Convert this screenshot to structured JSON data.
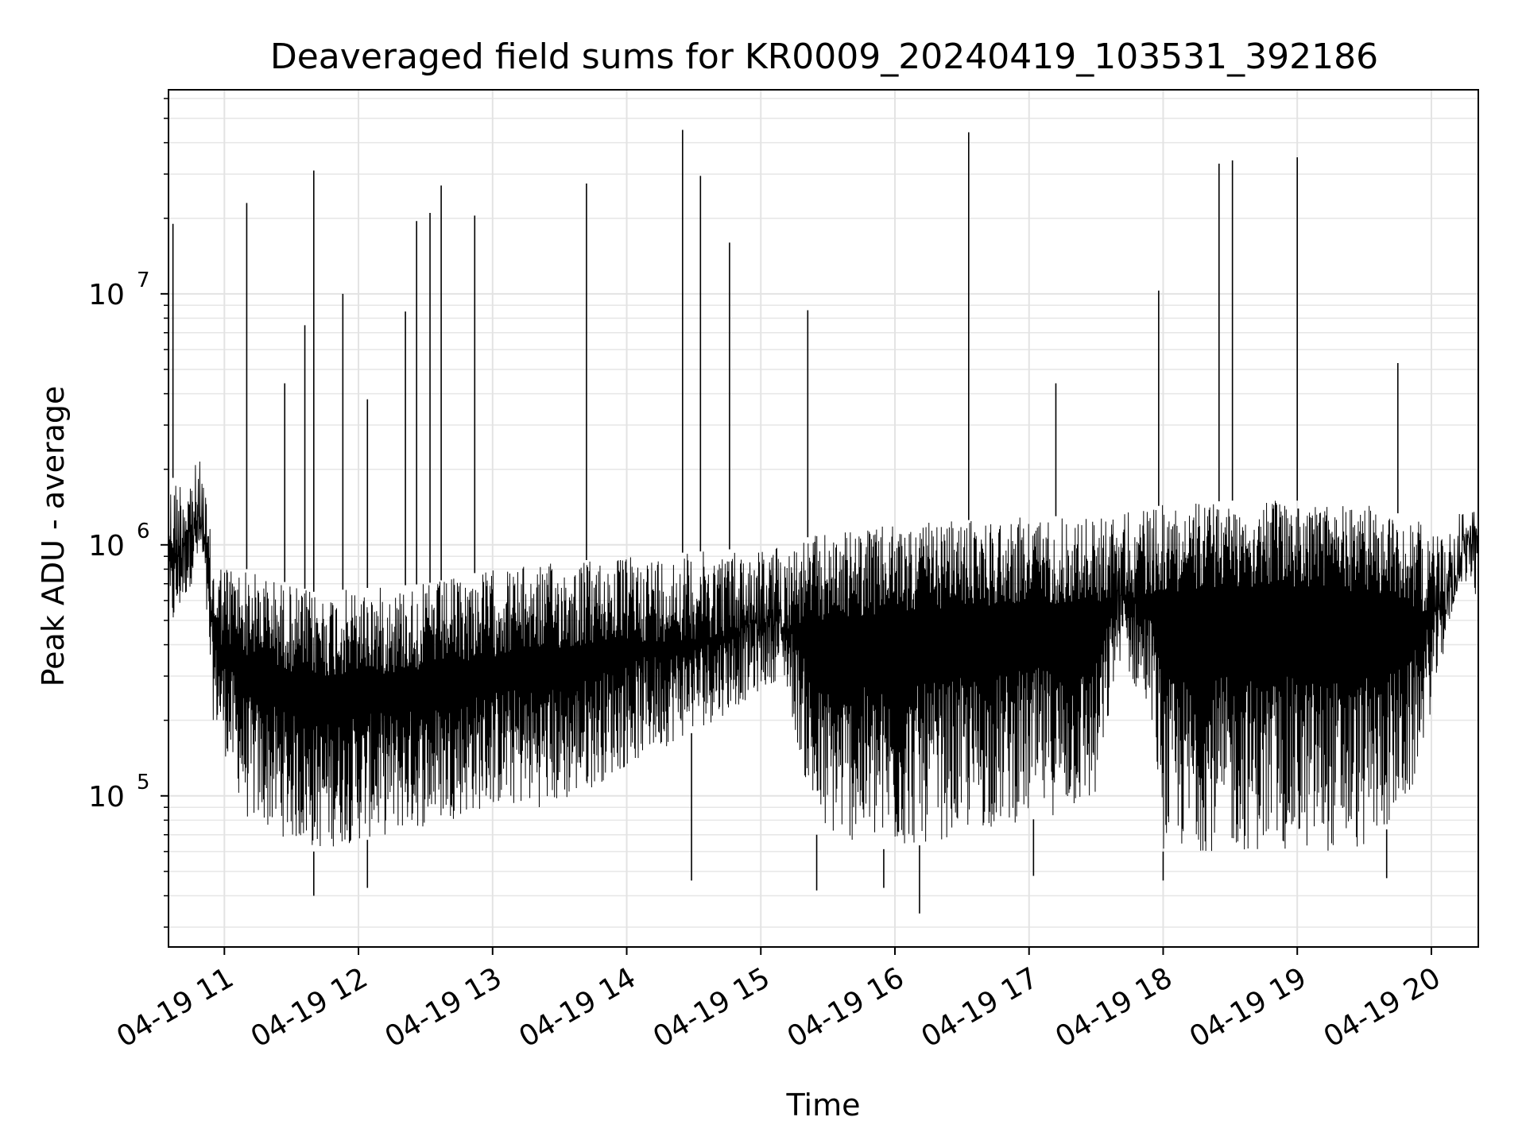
{
  "chart_data": {
    "type": "line",
    "title": "Deaveraged field sums for KR0009_20240419_103531_392186",
    "xlabel": "Time",
    "ylabel": "Peak ADU - average",
    "y_scale": "log",
    "xlim": [
      "04-19 10:35",
      "04-19 20:21"
    ],
    "ylim": [
      25000,
      65000000
    ],
    "x_ticks": [
      "04-19 11",
      "04-19 12",
      "04-19 13",
      "04-19 14",
      "04-19 15",
      "04-19 16",
      "04-19 17",
      "04-19 18",
      "04-19 19",
      "04-19 20"
    ],
    "x_tick_hours": [
      11,
      12,
      13,
      14,
      15,
      16,
      17,
      18,
      19,
      20
    ],
    "y_ticks": [
      100000,
      1000000,
      10000000
    ],
    "y_tick_labels": [
      {
        "base": "10",
        "exp": "5"
      },
      {
        "base": "10",
        "exp": "6"
      },
      {
        "base": "10",
        "exp": "7"
      }
    ],
    "grid": true,
    "line_color": "#000000",
    "baseline_envelope": [
      {
        "time": "04-19 10:35",
        "upper": 1800000,
        "lower": 400000
      },
      {
        "time": "04-19 10:50",
        "upper": 2200000,
        "lower": 900000
      },
      {
        "time": "04-19 10:55",
        "upper": 900000,
        "lower": 200000
      },
      {
        "time": "04-19 11:10",
        "upper": 800000,
        "lower": 80000
      },
      {
        "time": "04-19 11:40",
        "upper": 650000,
        "lower": 60000
      },
      {
        "time": "04-19 12:30",
        "upper": 700000,
        "lower": 75000
      },
      {
        "time": "04-19 13:00",
        "upper": 800000,
        "lower": 90000
      },
      {
        "time": "04-19 13:30",
        "upper": 850000,
        "lower": 90000
      },
      {
        "time": "04-19 14:00",
        "upper": 900000,
        "lower": 130000
      },
      {
        "time": "04-19 14:40",
        "upper": 950000,
        "lower": 200000
      },
      {
        "time": "04-19 15:10",
        "upper": 1000000,
        "lower": 300000
      },
      {
        "time": "04-19 15:25",
        "upper": 1100000,
        "lower": 70000
      },
      {
        "time": "04-19 16:00",
        "upper": 1200000,
        "lower": 60000
      },
      {
        "time": "04-19 16:30",
        "upper": 1250000,
        "lower": 70000
      },
      {
        "time": "04-19 17:00",
        "upper": 1300000,
        "lower": 80000
      },
      {
        "time": "04-19 17:30",
        "upper": 1300000,
        "lower": 90000
      },
      {
        "time": "04-19 17:40",
        "upper": 1350000,
        "lower": 350000
      },
      {
        "time": "04-19 17:55",
        "upper": 1400000,
        "lower": 200000
      },
      {
        "time": "04-19 18:00",
        "upper": 1450000,
        "lower": 60000
      },
      {
        "time": "04-19 18:30",
        "upper": 1500000,
        "lower": 60000
      },
      {
        "time": "04-19 19:00",
        "upper": 1500000,
        "lower": 60000
      },
      {
        "time": "04-19 19:30",
        "upper": 1450000,
        "lower": 60000
      },
      {
        "time": "04-19 19:50",
        "upper": 1300000,
        "lower": 90000
      },
      {
        "time": "04-19 20:05",
        "upper": 1100000,
        "lower": 350000
      },
      {
        "time": "04-19 20:15",
        "upper": 1500000,
        "lower": 900000
      },
      {
        "time": "04-19 20:21",
        "upper": 1400000,
        "lower": 1100000
      }
    ],
    "spikes": [
      {
        "time": "04-19 10:37",
        "value": 19000000
      },
      {
        "time": "04-19 11:10",
        "value": 23000000
      },
      {
        "time": "04-19 11:27",
        "value": 4400000
      },
      {
        "time": "04-19 11:36",
        "value": 7500000
      },
      {
        "time": "04-19 11:40",
        "value": 31000000
      },
      {
        "time": "04-19 11:53",
        "value": 10000000
      },
      {
        "time": "04-19 12:04",
        "value": 3800000
      },
      {
        "time": "04-19 12:21",
        "value": 8500000
      },
      {
        "time": "04-19 12:26",
        "value": 19500000
      },
      {
        "time": "04-19 12:32",
        "value": 21000000
      },
      {
        "time": "04-19 12:37",
        "value": 27000000
      },
      {
        "time": "04-19 12:52",
        "value": 20500000
      },
      {
        "time": "04-19 13:42",
        "value": 27500000
      },
      {
        "time": "04-19 14:25",
        "value": 45000000
      },
      {
        "time": "04-19 14:33",
        "value": 29500000
      },
      {
        "time": "04-19 14:46",
        "value": 16000000
      },
      {
        "time": "04-19 15:21",
        "value": 8600000
      },
      {
        "time": "04-19 16:33",
        "value": 44000000
      },
      {
        "time": "04-19 17:12",
        "value": 4400000
      },
      {
        "time": "04-19 17:58",
        "value": 10300000
      },
      {
        "time": "04-19 18:25",
        "value": 33000000
      },
      {
        "time": "04-19 18:31",
        "value": 34000000
      },
      {
        "time": "04-19 19:00",
        "value": 35000000
      },
      {
        "time": "04-19 19:45",
        "value": 5300000
      }
    ],
    "dips": [
      {
        "time": "04-19 11:40",
        "value": 40000
      },
      {
        "time": "04-19 12:04",
        "value": 43000
      },
      {
        "time": "04-19 14:29",
        "value": 46000
      },
      {
        "time": "04-19 15:25",
        "value": 42000
      },
      {
        "time": "04-19 15:55",
        "value": 43000
      },
      {
        "time": "04-19 16:11",
        "value": 34000
      },
      {
        "time": "04-19 17:02",
        "value": 48000
      },
      {
        "time": "04-19 18:00",
        "value": 46000
      },
      {
        "time": "04-19 19:40",
        "value": 47000
      }
    ]
  }
}
